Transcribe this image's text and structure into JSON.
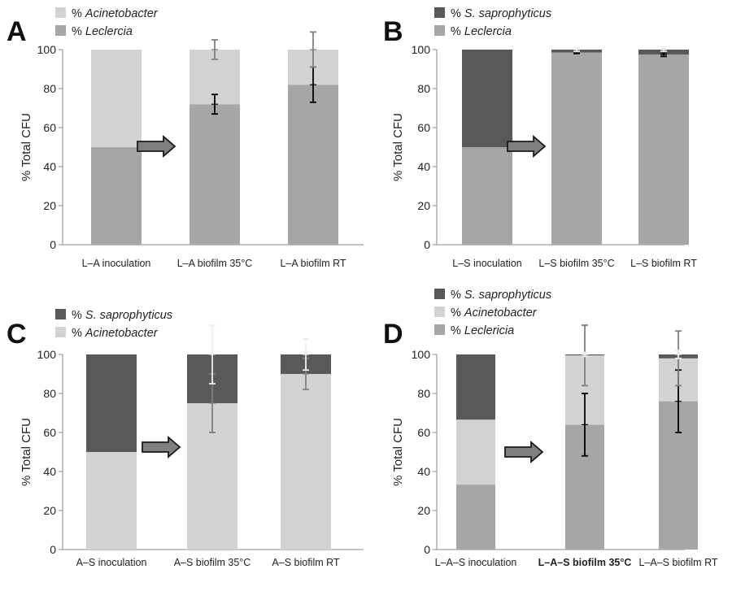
{
  "y_axis_label": "% Total CFU",
  "colors": {
    "S. saprophyticus": "#595959",
    "Acinetobacter": "#d3d3d3",
    "Leclercia": "#a6a6a6"
  },
  "chart_data": [
    {
      "panel": "A",
      "type": "bar",
      "stacked": true,
      "ylabel": "% Total CFU",
      "ylim": [
        0,
        100
      ],
      "yticks": [
        0,
        20,
        40,
        60,
        80,
        100
      ],
      "categories": [
        "L–A inoculation",
        "L–A biofilm 35°C",
        "L–A biofilm RT"
      ],
      "legend": [
        {
          "label": "% Acinetobacter",
          "italic_part": "Acinetobacter",
          "color": "#d3d3d3"
        },
        {
          "label": "% Leclercia",
          "italic_part": "Leclercia",
          "color": "#a6a6a6"
        }
      ],
      "series": [
        {
          "name": "% Leclercia",
          "color": "#a6a6a6",
          "values": [
            50,
            72,
            82
          ],
          "error_bars": [
            null,
            {
              "center": 72,
              "low": 67,
              "high": 77,
              "color": "#000000"
            },
            {
              "center": 82,
              "low": 73,
              "high": 91,
              "color": "#000000"
            }
          ]
        },
        {
          "name": "% Acinetobacter",
          "color": "#d3d3d3",
          "values": [
            50,
            28,
            18
          ],
          "error_bars": [
            null,
            {
              "center": 100,
              "low": 95,
              "high": 105,
              "color": "#7f7f7f"
            },
            {
              "center": 100,
              "low": 91,
              "high": 109,
              "color": "#7f7f7f"
            }
          ]
        }
      ],
      "arrow_after_category": 0
    },
    {
      "panel": "B",
      "type": "bar",
      "stacked": true,
      "ylabel": "% Total CFU",
      "ylim": [
        0,
        100
      ],
      "yticks": [
        0,
        20,
        40,
        60,
        80,
        100
      ],
      "categories": [
        "L–S inoculation",
        "L–S biofilm 35°C",
        "L–S biofilm RT"
      ],
      "legend": [
        {
          "label": "% S. saprophyticus",
          "italic_part": "S. saprophyticus",
          "color": "#595959"
        },
        {
          "label": "% Leclercia",
          "italic_part": "Leclercia",
          "color": "#a6a6a6"
        }
      ],
      "series": [
        {
          "name": "% Leclercia",
          "color": "#a6a6a6",
          "values": [
            50,
            98.5,
            97.5
          ],
          "error_bars": [
            null,
            {
              "center": 98.5,
              "low": 98,
              "high": 99,
              "color": "#000000"
            },
            {
              "center": 97.5,
              "low": 96.5,
              "high": 98.5,
              "color": "#000000"
            }
          ]
        },
        {
          "name": "% S. saprophyticus",
          "color": "#595959",
          "values": [
            50,
            1.5,
            2.5
          ],
          "error_bars": [
            null,
            {
              "center": 100,
              "low": 99,
              "high": 101,
              "color": "#eeeeee"
            },
            {
              "center": 100,
              "low": 99,
              "high": 101,
              "color": "#eeeeee"
            }
          ]
        }
      ],
      "arrow_after_category": 0
    },
    {
      "panel": "C",
      "type": "bar",
      "stacked": true,
      "ylabel": "% Total CFU",
      "ylim": [
        0,
        100
      ],
      "yticks": [
        0,
        20,
        40,
        60,
        80,
        100
      ],
      "categories": [
        "A–S inoculation",
        "A–S biofilm 35°C",
        "A–S biofilm RT"
      ],
      "legend": [
        {
          "label": "% S. saprophyticus",
          "italic_part": "S. saprophyticus",
          "color": "#595959"
        },
        {
          "label": "% Acinetobacter",
          "italic_part": "Acinetobacter",
          "color": "#d3d3d3"
        }
      ],
      "series": [
        {
          "name": "% Acinetobacter",
          "color": "#d3d3d3",
          "values": [
            50,
            75,
            90
          ],
          "error_bars": [
            null,
            {
              "center": 75,
              "low": 60,
              "high": 90,
              "color": "#7f7f7f"
            },
            {
              "center": 90,
              "low": 82,
              "high": 98,
              "color": "#7f7f7f"
            }
          ]
        },
        {
          "name": "% S. saprophyticus",
          "color": "#595959",
          "values": [
            50,
            25,
            10
          ],
          "error_bars": [
            null,
            {
              "center": 100,
              "low": 85,
              "high": 115,
              "color": "#eeeeee"
            },
            {
              "center": 100,
              "low": 92,
              "high": 108,
              "color": "#eeeeee"
            }
          ]
        }
      ],
      "arrow_after_category": 0
    },
    {
      "panel": "D",
      "type": "bar",
      "stacked": true,
      "ylabel": "% Total CFU",
      "ylim": [
        0,
        100
      ],
      "yticks": [
        0,
        20,
        40,
        60,
        80,
        100
      ],
      "categories": [
        "L–A–S inoculation",
        "L–A–S biofilm 35°C",
        "L–A–S biofilm RT"
      ],
      "bold_category": 1,
      "legend": [
        {
          "label": "% S. saprophyticus",
          "italic_part": "S. saprophyticus",
          "color": "#595959"
        },
        {
          "label": "% Acinetobacter",
          "italic_part": "Acinetobacter",
          "color": "#d3d3d3"
        },
        {
          "label": "% Leclericia",
          "italic_part": "Leclericia",
          "color": "#a6a6a6"
        }
      ],
      "series": [
        {
          "name": "% Leclericia",
          "color": "#a6a6a6",
          "values": [
            33.3,
            64,
            76
          ],
          "error_bars": [
            null,
            {
              "center": 64,
              "low": 48,
              "high": 80,
              "color": "#000000"
            },
            {
              "center": 76,
              "low": 60,
              "high": 92,
              "color": "#000000"
            }
          ]
        },
        {
          "name": "% Acinetobacter",
          "color": "#d3d3d3",
          "values": [
            33.3,
            35.5,
            22
          ],
          "error_bars": [
            null,
            {
              "center": 99.5,
              "low": 84,
              "high": 115,
              "color": "#7f7f7f"
            },
            {
              "center": 98,
              "low": 84,
              "high": 112,
              "color": "#7f7f7f"
            }
          ]
        },
        {
          "name": "% S. saprophyticus",
          "color": "#595959",
          "values": [
            33.4,
            0.5,
            2
          ],
          "error_bars": [
            null,
            {
              "center": 100,
              "low": 99,
              "high": 101,
              "color": "#eeeeee"
            },
            {
              "center": 100,
              "low": 98,
              "high": 102,
              "color": "#eeeeee"
            }
          ]
        }
      ],
      "arrow_after_category": 0
    }
  ]
}
